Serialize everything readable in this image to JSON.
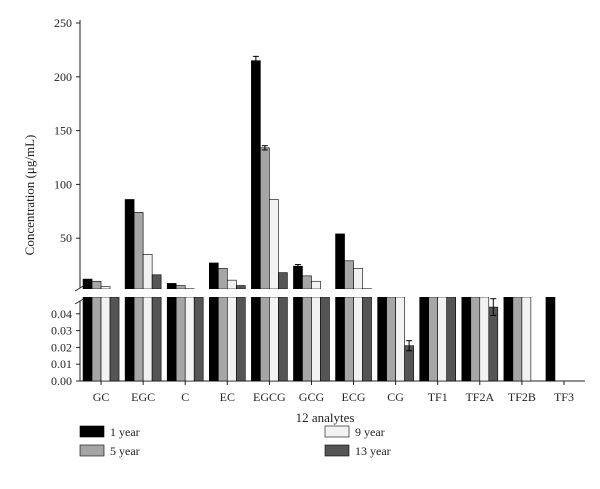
{
  "chart_data": {
    "type": "bar",
    "xlabel": "12 analytes",
    "ylabel": "Concentration (μg/mL)",
    "categories": [
      "GC",
      "EGC",
      "C",
      "EC",
      "EGCG",
      "GCG",
      "ECG",
      "CG",
      "TF1",
      "TF2A",
      "TF2B",
      "TF3"
    ],
    "upper_axis": {
      "ylim": [
        0,
        250
      ],
      "ticks": [
        "50",
        "100",
        "150",
        "200",
        "250"
      ]
    },
    "lower_axis": {
      "ylim": [
        0,
        0.05
      ],
      "ticks": [
        "0.00",
        "0.01",
        "0.02",
        "0.03",
        "0.04"
      ]
    },
    "series": [
      {
        "name": "1 year",
        "color": "#000000",
        "values": [
          12,
          86,
          8,
          27,
          215,
          24,
          54,
          "break",
          "break",
          "break",
          "break",
          0.05
        ]
      },
      {
        "name": "5 year",
        "color": "#a6a6a6",
        "values": [
          10,
          74,
          6,
          22,
          134,
          15,
          29,
          0.05,
          0.05,
          0.05,
          0.05,
          0
        ]
      },
      {
        "name": "9 year",
        "color": "#f2f2f2",
        "values": [
          5,
          35,
          3,
          11,
          86,
          10,
          22,
          0.05,
          0.05,
          0.05,
          0.05,
          0
        ]
      },
      {
        "name": "13 year",
        "color": "#555555",
        "values": [
          2,
          16,
          1,
          6,
          18,
          2,
          3,
          0.021,
          0.05,
          0.044,
          0,
          0
        ]
      }
    ],
    "errors": [
      {
        "series": 0,
        "category": 4,
        "err": 4
      },
      {
        "series": 1,
        "category": 4,
        "err": 2
      },
      {
        "series": 0,
        "category": 5,
        "err": 1.5
      },
      {
        "series": 3,
        "category": 7,
        "err": 0.003
      },
      {
        "series": 3,
        "category": 9,
        "err": 0.005
      }
    ],
    "legend": {
      "position": "bottom",
      "columns": 2
    },
    "grid": false
  }
}
